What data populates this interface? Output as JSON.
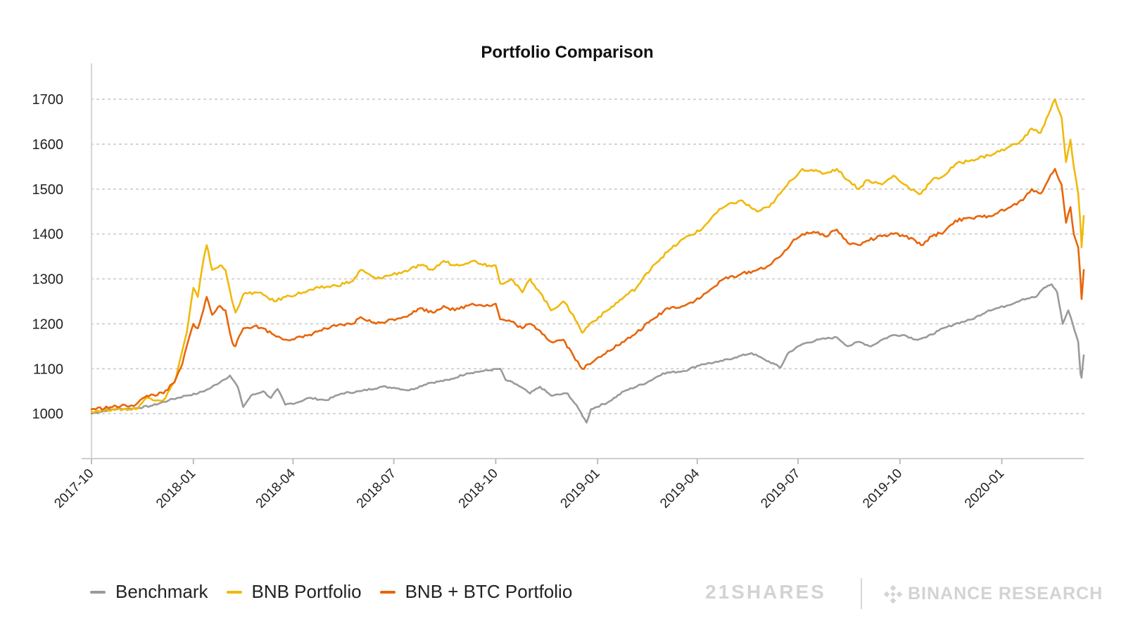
{
  "chart_data": {
    "type": "line",
    "title": "Portfolio Comparison",
    "xlabel": "",
    "ylabel": "",
    "ylim": [
      900,
      1780
    ],
    "yticks": [
      1000,
      1100,
      1200,
      1300,
      1400,
      1500,
      1600,
      1700
    ],
    "x_start": "2017-10-01",
    "x_end": "2020-03-15",
    "xticks": [
      "2017-10",
      "2018-01",
      "2018-04",
      "2018-07",
      "2018-10",
      "2019-01",
      "2019-04",
      "2019-07",
      "2019-10",
      "2020-01"
    ],
    "grid": "horizontal dotted",
    "legend_position": "bottom-left",
    "series": [
      {
        "name": "Benchmark",
        "color": "#9a9a9a",
        "points": [
          [
            "2017-10-01",
            1000
          ],
          [
            "2017-10-20",
            1010
          ],
          [
            "2017-11-10",
            1012
          ],
          [
            "2017-11-25",
            1018
          ],
          [
            "2017-12-10",
            1030
          ],
          [
            "2017-12-25",
            1040
          ],
          [
            "2018-01-05",
            1045
          ],
          [
            "2018-01-15",
            1055
          ],
          [
            "2018-01-28",
            1075
          ],
          [
            "2018-02-03",
            1085
          ],
          [
            "2018-02-10",
            1060
          ],
          [
            "2018-02-15",
            1015
          ],
          [
            "2018-02-22",
            1040
          ],
          [
            "2018-03-05",
            1050
          ],
          [
            "2018-03-12",
            1035
          ],
          [
            "2018-03-18",
            1055
          ],
          [
            "2018-03-25",
            1020
          ],
          [
            "2018-04-05",
            1025
          ],
          [
            "2018-04-15",
            1035
          ],
          [
            "2018-05-01",
            1030
          ],
          [
            "2018-05-15",
            1045
          ],
          [
            "2018-06-01",
            1050
          ],
          [
            "2018-06-20",
            1060
          ],
          [
            "2018-07-01",
            1058
          ],
          [
            "2018-07-15",
            1052
          ],
          [
            "2018-08-01",
            1068
          ],
          [
            "2018-08-20",
            1075
          ],
          [
            "2018-09-05",
            1090
          ],
          [
            "2018-09-20",
            1095
          ],
          [
            "2018-10-05",
            1100
          ],
          [
            "2018-10-10",
            1075
          ],
          [
            "2018-10-20",
            1065
          ],
          [
            "2018-11-01",
            1045
          ],
          [
            "2018-11-10",
            1060
          ],
          [
            "2018-11-20",
            1040
          ],
          [
            "2018-12-05",
            1045
          ],
          [
            "2018-12-15",
            1010
          ],
          [
            "2018-12-22",
            980
          ],
          [
            "2018-12-26",
            1010
          ],
          [
            "2019-01-10",
            1025
          ],
          [
            "2019-01-25",
            1050
          ],
          [
            "2019-02-15",
            1070
          ],
          [
            "2019-03-01",
            1090
          ],
          [
            "2019-03-20",
            1095
          ],
          [
            "2019-04-05",
            1110
          ],
          [
            "2019-04-20",
            1115
          ],
          [
            "2019-05-05",
            1125
          ],
          [
            "2019-05-20",
            1135
          ],
          [
            "2019-06-01",
            1120
          ],
          [
            "2019-06-10",
            1110
          ],
          [
            "2019-06-15",
            1102
          ],
          [
            "2019-06-22",
            1135
          ],
          [
            "2019-07-05",
            1155
          ],
          [
            "2019-07-20",
            1165
          ],
          [
            "2019-08-05",
            1170
          ],
          [
            "2019-08-15",
            1150
          ],
          [
            "2019-08-25",
            1160
          ],
          [
            "2019-09-05",
            1150
          ],
          [
            "2019-09-15",
            1165
          ],
          [
            "2019-09-25",
            1175
          ],
          [
            "2019-10-05",
            1175
          ],
          [
            "2019-10-15",
            1165
          ],
          [
            "2019-10-25",
            1170
          ],
          [
            "2019-11-05",
            1185
          ],
          [
            "2019-11-20",
            1200
          ],
          [
            "2019-12-05",
            1210
          ],
          [
            "2019-12-20",
            1230
          ],
          [
            "2020-01-05",
            1240
          ],
          [
            "2020-01-20",
            1255
          ],
          [
            "2020-02-01",
            1260
          ],
          [
            "2020-02-08",
            1280
          ],
          [
            "2020-02-15",
            1288
          ],
          [
            "2020-02-20",
            1270
          ],
          [
            "2020-02-25",
            1200
          ],
          [
            "2020-03-01",
            1230
          ],
          [
            "2020-03-05",
            1200
          ],
          [
            "2020-03-10",
            1160
          ],
          [
            "2020-03-12",
            1090
          ],
          [
            "2020-03-13",
            1080
          ],
          [
            "2020-03-15",
            1130
          ]
        ]
      },
      {
        "name": "BNB Portfolio",
        "color": "#f0b90b",
        "points": [
          [
            "2017-10-01",
            1005
          ],
          [
            "2017-10-20",
            1010
          ],
          [
            "2017-11-10",
            1010
          ],
          [
            "2017-11-20",
            1035
          ],
          [
            "2017-12-05",
            1030
          ],
          [
            "2017-12-15",
            1070
          ],
          [
            "2017-12-22",
            1140
          ],
          [
            "2017-12-26",
            1180
          ],
          [
            "2018-01-01",
            1280
          ],
          [
            "2018-01-05",
            1260
          ],
          [
            "2018-01-10",
            1340
          ],
          [
            "2018-01-13",
            1375
          ],
          [
            "2018-01-18",
            1320
          ],
          [
            "2018-01-25",
            1330
          ],
          [
            "2018-01-30",
            1320
          ],
          [
            "2018-02-05",
            1250
          ],
          [
            "2018-02-08",
            1225
          ],
          [
            "2018-02-15",
            1265
          ],
          [
            "2018-02-25",
            1270
          ],
          [
            "2018-03-05",
            1265
          ],
          [
            "2018-03-15",
            1250
          ],
          [
            "2018-03-25",
            1260
          ],
          [
            "2018-04-10",
            1270
          ],
          [
            "2018-04-25",
            1280
          ],
          [
            "2018-05-10",
            1285
          ],
          [
            "2018-05-25",
            1295
          ],
          [
            "2018-06-01",
            1320
          ],
          [
            "2018-06-15",
            1300
          ],
          [
            "2018-06-30",
            1310
          ],
          [
            "2018-07-15",
            1320
          ],
          [
            "2018-07-25",
            1330
          ],
          [
            "2018-08-05",
            1320
          ],
          [
            "2018-08-15",
            1340
          ],
          [
            "2018-08-25",
            1330
          ],
          [
            "2018-09-10",
            1340
          ],
          [
            "2018-09-25",
            1330
          ],
          [
            "2018-10-01",
            1330
          ],
          [
            "2018-10-05",
            1290
          ],
          [
            "2018-10-15",
            1300
          ],
          [
            "2018-10-25",
            1270
          ],
          [
            "2018-11-01",
            1300
          ],
          [
            "2018-11-10",
            1270
          ],
          [
            "2018-11-20",
            1230
          ],
          [
            "2018-12-01",
            1250
          ],
          [
            "2018-12-10",
            1220
          ],
          [
            "2018-12-18",
            1180
          ],
          [
            "2018-12-25",
            1200
          ],
          [
            "2019-01-10",
            1230
          ],
          [
            "2019-01-25",
            1260
          ],
          [
            "2019-02-05",
            1280
          ],
          [
            "2019-02-20",
            1330
          ],
          [
            "2019-03-05",
            1360
          ],
          [
            "2019-03-20",
            1390
          ],
          [
            "2019-04-05",
            1410
          ],
          [
            "2019-04-15",
            1440
          ],
          [
            "2019-04-25",
            1460
          ],
          [
            "2019-05-10",
            1475
          ],
          [
            "2019-05-25",
            1450
          ],
          [
            "2019-06-05",
            1460
          ],
          [
            "2019-06-15",
            1490
          ],
          [
            "2019-06-25",
            1520
          ],
          [
            "2019-07-05",
            1545
          ],
          [
            "2019-07-15",
            1540
          ],
          [
            "2019-07-25",
            1535
          ],
          [
            "2019-08-05",
            1545
          ],
          [
            "2019-08-15",
            1520
          ],
          [
            "2019-08-25",
            1500
          ],
          [
            "2019-09-01",
            1520
          ],
          [
            "2019-09-15",
            1510
          ],
          [
            "2019-09-25",
            1530
          ],
          [
            "2019-10-05",
            1510
          ],
          [
            "2019-10-15",
            1495
          ],
          [
            "2019-10-20",
            1490
          ],
          [
            "2019-10-30",
            1520
          ],
          [
            "2019-11-10",
            1530
          ],
          [
            "2019-11-20",
            1555
          ],
          [
            "2019-12-05",
            1565
          ],
          [
            "2019-12-20",
            1575
          ],
          [
            "2020-01-05",
            1590
          ],
          [
            "2020-01-20",
            1610
          ],
          [
            "2020-01-28",
            1635
          ],
          [
            "2020-02-05",
            1625
          ],
          [
            "2020-02-12",
            1665
          ],
          [
            "2020-02-18",
            1700
          ],
          [
            "2020-02-24",
            1660
          ],
          [
            "2020-02-28",
            1560
          ],
          [
            "2020-03-03",
            1610
          ],
          [
            "2020-03-06",
            1550
          ],
          [
            "2020-03-10",
            1490
          ],
          [
            "2020-03-12",
            1420
          ],
          [
            "2020-03-13",
            1370
          ],
          [
            "2020-03-15",
            1440
          ]
        ]
      },
      {
        "name": "BNB + BTC Portfolio",
        "color": "#e8650a",
        "points": [
          [
            "2017-10-01",
            1010
          ],
          [
            "2017-10-20",
            1015
          ],
          [
            "2017-11-10",
            1020
          ],
          [
            "2017-11-20",
            1040
          ],
          [
            "2017-12-05",
            1045
          ],
          [
            "2017-12-15",
            1070
          ],
          [
            "2017-12-22",
            1110
          ],
          [
            "2017-12-26",
            1150
          ],
          [
            "2018-01-01",
            1200
          ],
          [
            "2018-01-05",
            1190
          ],
          [
            "2018-01-10",
            1230
          ],
          [
            "2018-01-13",
            1260
          ],
          [
            "2018-01-18",
            1220
          ],
          [
            "2018-01-25",
            1240
          ],
          [
            "2018-01-30",
            1230
          ],
          [
            "2018-02-05",
            1160
          ],
          [
            "2018-02-08",
            1150
          ],
          [
            "2018-02-15",
            1190
          ],
          [
            "2018-02-25",
            1195
          ],
          [
            "2018-03-05",
            1190
          ],
          [
            "2018-03-15",
            1175
          ],
          [
            "2018-03-25",
            1165
          ],
          [
            "2018-04-10",
            1170
          ],
          [
            "2018-04-25",
            1185
          ],
          [
            "2018-05-10",
            1195
          ],
          [
            "2018-05-25",
            1200
          ],
          [
            "2018-06-01",
            1215
          ],
          [
            "2018-06-15",
            1200
          ],
          [
            "2018-06-30",
            1210
          ],
          [
            "2018-07-15",
            1220
          ],
          [
            "2018-07-25",
            1235
          ],
          [
            "2018-08-05",
            1225
          ],
          [
            "2018-08-15",
            1240
          ],
          [
            "2018-08-25",
            1230
          ],
          [
            "2018-09-10",
            1245
          ],
          [
            "2018-09-25",
            1240
          ],
          [
            "2018-10-01",
            1245
          ],
          [
            "2018-10-05",
            1210
          ],
          [
            "2018-10-15",
            1205
          ],
          [
            "2018-10-25",
            1190
          ],
          [
            "2018-11-01",
            1200
          ],
          [
            "2018-11-10",
            1185
          ],
          [
            "2018-11-20",
            1160
          ],
          [
            "2018-12-01",
            1165
          ],
          [
            "2018-12-10",
            1130
          ],
          [
            "2018-12-18",
            1100
          ],
          [
            "2018-12-25",
            1110
          ],
          [
            "2019-01-10",
            1140
          ],
          [
            "2019-01-25",
            1160
          ],
          [
            "2019-02-05",
            1180
          ],
          [
            "2019-02-20",
            1210
          ],
          [
            "2019-03-05",
            1235
          ],
          [
            "2019-03-20",
            1240
          ],
          [
            "2019-04-05",
            1260
          ],
          [
            "2019-04-15",
            1280
          ],
          [
            "2019-04-25",
            1300
          ],
          [
            "2019-05-10",
            1310
          ],
          [
            "2019-05-25",
            1320
          ],
          [
            "2019-06-05",
            1330
          ],
          [
            "2019-06-15",
            1350
          ],
          [
            "2019-06-25",
            1380
          ],
          [
            "2019-07-05",
            1400
          ],
          [
            "2019-07-15",
            1405
          ],
          [
            "2019-07-25",
            1395
          ],
          [
            "2019-08-05",
            1410
          ],
          [
            "2019-08-15",
            1380
          ],
          [
            "2019-08-25",
            1375
          ],
          [
            "2019-09-01",
            1385
          ],
          [
            "2019-09-15",
            1395
          ],
          [
            "2019-09-25",
            1400
          ],
          [
            "2019-10-05",
            1395
          ],
          [
            "2019-10-15",
            1385
          ],
          [
            "2019-10-20",
            1375
          ],
          [
            "2019-10-30",
            1395
          ],
          [
            "2019-11-10",
            1405
          ],
          [
            "2019-11-20",
            1430
          ],
          [
            "2019-12-05",
            1435
          ],
          [
            "2019-12-20",
            1440
          ],
          [
            "2020-01-05",
            1455
          ],
          [
            "2020-01-20",
            1475
          ],
          [
            "2020-01-28",
            1500
          ],
          [
            "2020-02-05",
            1490
          ],
          [
            "2020-02-12",
            1520
          ],
          [
            "2020-02-18",
            1545
          ],
          [
            "2020-02-24",
            1510
          ],
          [
            "2020-02-28",
            1425
          ],
          [
            "2020-03-03",
            1460
          ],
          [
            "2020-03-06",
            1400
          ],
          [
            "2020-03-10",
            1370
          ],
          [
            "2020-03-12",
            1300
          ],
          [
            "2020-03-13",
            1255
          ],
          [
            "2020-03-15",
            1320
          ]
        ]
      }
    ]
  },
  "legend": [
    {
      "label": "Benchmark",
      "color": "#9a9a9a"
    },
    {
      "label": "BNB Portfolio",
      "color": "#f0b90b"
    },
    {
      "label": "BNB + BTC Portfolio",
      "color": "#e8650a"
    }
  ],
  "branding": {
    "left": "21SHARES",
    "right": "BINANCE RESEARCH"
  }
}
